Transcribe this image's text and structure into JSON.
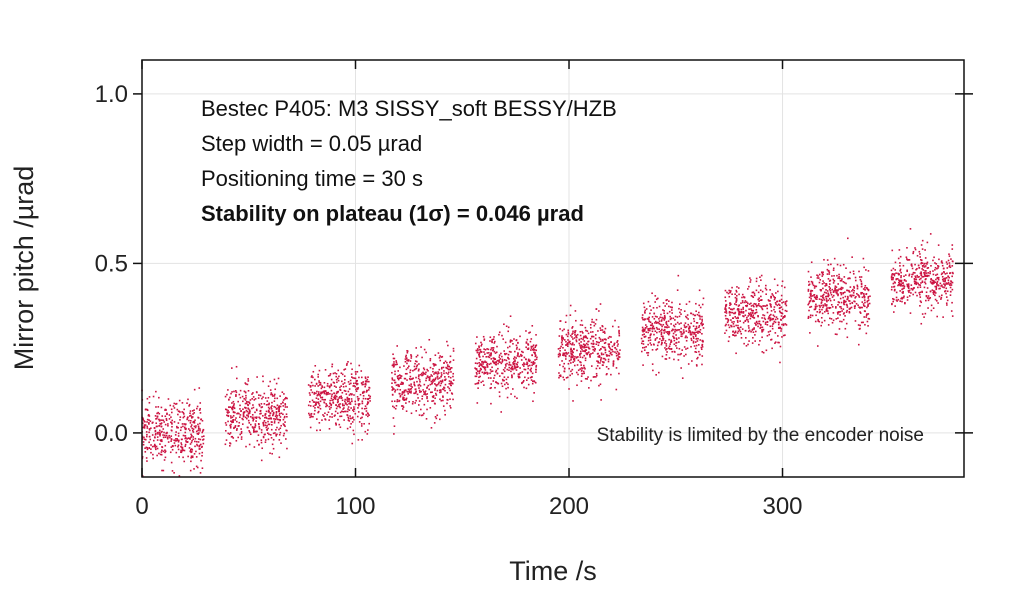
{
  "chart_data": {
    "type": "scatter",
    "xlabel": "Time /s",
    "ylabel": "Mirror pitch /µrad",
    "xlim": [
      0,
      385
    ],
    "ylim": [
      -0.13,
      1.1
    ],
    "x_ticks": [
      0,
      100,
      200,
      300
    ],
    "x_tick_labels": [
      "0",
      "100",
      "200",
      "300"
    ],
    "y_ticks": [
      0.0,
      0.5,
      1.0
    ],
    "y_tick_labels": [
      "0.0",
      "0.5",
      "1.0"
    ],
    "grid": true,
    "marker_color": "#cc1442",
    "annotations": [
      "Bestec P405: M3 SISSY_soft BESSY/HZB",
      "Step width = 0.05 µrad",
      "Positioning time = 30 s",
      "Stability on plateau (1σ) = 0.046 µrad"
    ],
    "note": "Stability is limited by the encoder noise",
    "noise_sigma": 0.046,
    "series": [
      {
        "name": "Mirror pitch",
        "plateaus": [
          {
            "t_start": 0,
            "t_end": 29,
            "level": 0.0
          },
          {
            "t_start": 39,
            "t_end": 68,
            "level": 0.05
          },
          {
            "t_start": 78,
            "t_end": 107,
            "level": 0.1
          },
          {
            "t_start": 117,
            "t_end": 146,
            "level": 0.15
          },
          {
            "t_start": 156,
            "t_end": 185,
            "level": 0.2
          },
          {
            "t_start": 195,
            "t_end": 224,
            "level": 0.25
          },
          {
            "t_start": 234,
            "t_end": 263,
            "level": 0.3
          },
          {
            "t_start": 273,
            "t_end": 302,
            "level": 0.35
          },
          {
            "t_start": 312,
            "t_end": 341,
            "level": 0.4
          },
          {
            "t_start": 351,
            "t_end": 380,
            "level": 0.45
          }
        ]
      }
    ]
  }
}
